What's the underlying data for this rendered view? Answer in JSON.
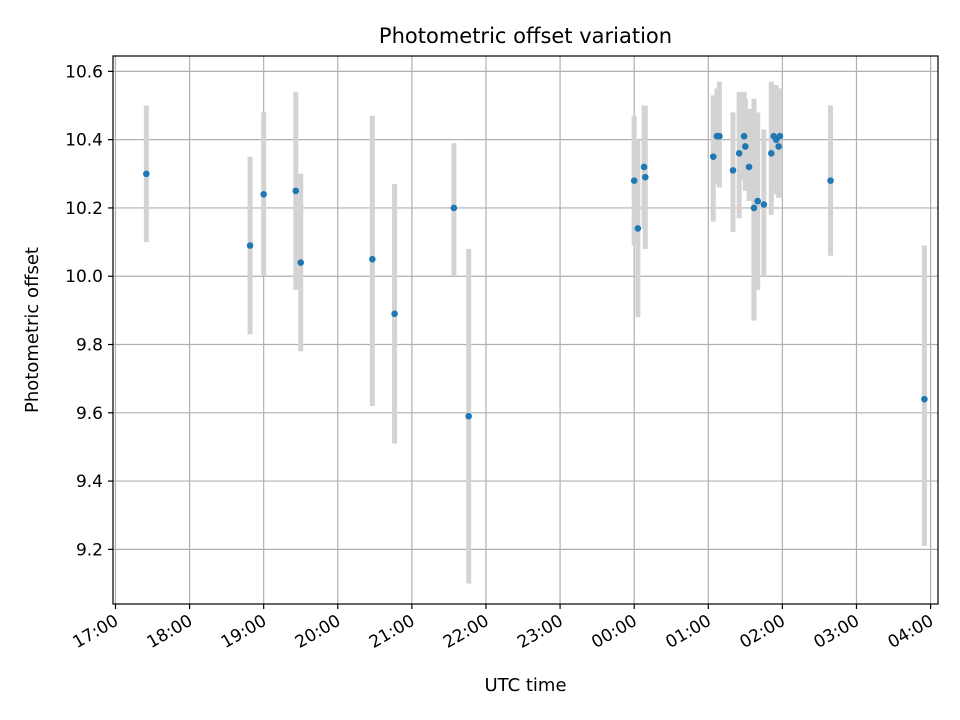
{
  "chart_data": {
    "type": "scatter",
    "title": "Photometric offset variation",
    "xlabel": "UTC time",
    "ylabel": "Photometric offset",
    "x_tick_labels": [
      "17:00",
      "18:00",
      "19:00",
      "20:00",
      "21:00",
      "22:00",
      "23:00",
      "00:00",
      "01:00",
      "02:00",
      "03:00",
      "04:00"
    ],
    "y_tick_labels": [
      "9.2",
      "9.4",
      "9.6",
      "9.8",
      "10.0",
      "10.2",
      "10.4",
      "10.6"
    ],
    "y_ticks": [
      9.2,
      9.4,
      9.6,
      9.8,
      10.0,
      10.2,
      10.4,
      10.6
    ],
    "xlim": [
      "16:58",
      "04:06"
    ],
    "ylim": [
      9.04,
      10.645
    ],
    "grid": true,
    "point_color": "#1f77b4",
    "errorbar_color": "#d3d3d3",
    "series": [
      {
        "points": [
          {
            "t": "17:25",
            "y": 10.3,
            "lo": 10.1,
            "hi": 10.5
          },
          {
            "t": "18:49",
            "y": 10.09,
            "lo": 9.83,
            "hi": 10.35
          },
          {
            "t": "19:00",
            "y": 10.24,
            "lo": 10.0,
            "hi": 10.48
          },
          {
            "t": "19:26",
            "y": 10.25,
            "lo": 9.96,
            "hi": 10.54
          },
          {
            "t": "19:30",
            "y": 10.04,
            "lo": 9.78,
            "hi": 10.3
          },
          {
            "t": "20:28",
            "y": 10.05,
            "lo": 9.62,
            "hi": 10.47
          },
          {
            "t": "20:46",
            "y": 9.89,
            "lo": 9.51,
            "hi": 10.27
          },
          {
            "t": "21:34",
            "y": 10.2,
            "lo": 10.0,
            "hi": 10.39
          },
          {
            "t": "21:46",
            "y": 9.59,
            "lo": 9.1,
            "hi": 10.08
          },
          {
            "t": "00:00",
            "y": 10.28,
            "lo": 10.09,
            "hi": 10.47
          },
          {
            "t": "00:03",
            "y": 10.14,
            "lo": 9.88,
            "hi": 10.4
          },
          {
            "t": "00:08",
            "y": 10.32,
            "lo": 10.14,
            "hi": 10.5
          },
          {
            "t": "00:09",
            "y": 10.29,
            "lo": 10.08,
            "hi": 10.5
          },
          {
            "t": "01:04",
            "y": 10.35,
            "lo": 10.16,
            "hi": 10.53
          },
          {
            "t": "01:07",
            "y": 10.41,
            "lo": 10.27,
            "hi": 10.55
          },
          {
            "t": "01:09",
            "y": 10.41,
            "lo": 10.26,
            "hi": 10.57
          },
          {
            "t": "01:20",
            "y": 10.31,
            "lo": 10.13,
            "hi": 10.48
          },
          {
            "t": "01:25",
            "y": 10.36,
            "lo": 10.17,
            "hi": 10.54
          },
          {
            "t": "01:29",
            "y": 10.41,
            "lo": 10.28,
            "hi": 10.54
          },
          {
            "t": "01:30",
            "y": 10.38,
            "lo": 10.25,
            "hi": 10.52
          },
          {
            "t": "01:33",
            "y": 10.32,
            "lo": 10.22,
            "hi": 10.49
          },
          {
            "t": "01:37",
            "y": 10.2,
            "lo": 9.87,
            "hi": 10.52
          },
          {
            "t": "01:40",
            "y": 10.22,
            "lo": 9.96,
            "hi": 10.48
          },
          {
            "t": "01:45",
            "y": 10.21,
            "lo": 10.0,
            "hi": 10.43
          },
          {
            "t": "01:51",
            "y": 10.36,
            "lo": 10.18,
            "hi": 10.57
          },
          {
            "t": "01:53",
            "y": 10.41,
            "lo": 10.26,
            "hi": 10.56
          },
          {
            "t": "01:55",
            "y": 10.4,
            "lo": 10.24,
            "hi": 10.56
          },
          {
            "t": "01:57",
            "y": 10.38,
            "lo": 10.23,
            "hi": 10.54
          },
          {
            "t": "01:58",
            "y": 10.41,
            "lo": 10.23,
            "hi": 10.55
          },
          {
            "t": "02:39",
            "y": 10.28,
            "lo": 10.06,
            "hi": 10.5
          },
          {
            "t": "03:55",
            "y": 9.64,
            "lo": 9.21,
            "hi": 10.09
          }
        ]
      }
    ]
  }
}
